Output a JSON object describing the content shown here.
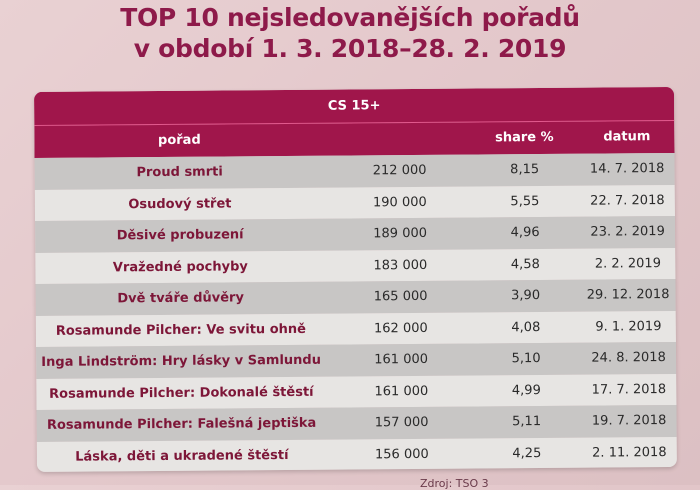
{
  "title": {
    "line1": "TOP 10 nejsledovanějších pořadů",
    "line2": "v období 1. 3. 2018–28. 2. 2019"
  },
  "table": {
    "group_header": "CS 15+",
    "columns": {
      "name": "pořad",
      "viewers": "",
      "share": "share %",
      "date": "datum"
    },
    "rows": [
      {
        "name": "Proud smrti",
        "viewers": "212 000",
        "share": "8,15",
        "date": "14. 7. 2018"
      },
      {
        "name": "Osudový střet",
        "viewers": "190 000",
        "share": "5,55",
        "date": "22. 7. 2018"
      },
      {
        "name": "Děsivé probuzení",
        "viewers": "189 000",
        "share": "4,96",
        "date": "23. 2. 2019"
      },
      {
        "name": "Vražedné pochyby",
        "viewers": "183 000",
        "share": "4,58",
        "date": "2. 2. 2019"
      },
      {
        "name": "Dvě tváře důvěry",
        "viewers": "165 000",
        "share": "3,90",
        "date": "29. 12. 2018"
      },
      {
        "name": "Rosamunde Pilcher: Ve svitu ohně",
        "viewers": "162 000",
        "share": "4,08",
        "date": "9. 1. 2019"
      },
      {
        "name": "Inga Lindström: Hry lásky v Samlundu",
        "viewers": "161 000",
        "share": "5,10",
        "date": "24. 8. 2018"
      },
      {
        "name": "Rosamunde Pilcher: Dokonalé štěstí",
        "viewers": "161 000",
        "share": "4,99",
        "date": "17. 7. 2018"
      },
      {
        "name": "Rosamunde Pilcher: Falešná jeptiška",
        "viewers": "157 000",
        "share": "5,11",
        "date": "19. 7. 2018"
      },
      {
        "name": "Láska, děti a ukradené štěstí",
        "viewers": "156 000",
        "share": "4,25",
        "date": "2. 11. 2018"
      }
    ]
  },
  "footer": {
    "source": "Zdroj: TSO 3"
  },
  "colors": {
    "accent": "#a0164b",
    "title": "#8e1a4a",
    "row_dark": "#c8c6c5",
    "row_light": "#e7e5e3",
    "background": "#e6cdd0"
  }
}
